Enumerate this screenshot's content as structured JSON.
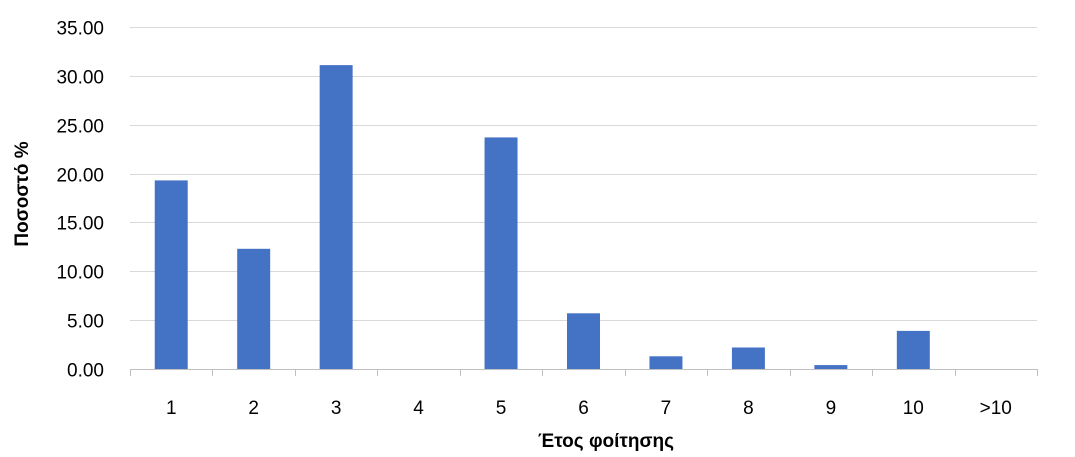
{
  "chart_data": {
    "type": "bar",
    "title": "",
    "xlabel": "Έτος φοίτησης",
    "ylabel": "Ποσοστό %",
    "categories": [
      "1",
      "2",
      "3",
      "4",
      "5",
      "6",
      "7",
      "8",
      "9",
      "10",
      ">10"
    ],
    "values": [
      19.3,
      12.3,
      31.1,
      0.0,
      23.7,
      5.7,
      1.3,
      2.2,
      0.4,
      3.9,
      0.0
    ],
    "ylim": [
      0,
      35
    ],
    "yticks": [
      0,
      5,
      10,
      15,
      20,
      25,
      30,
      35
    ],
    "ytick_labels": [
      "0.00",
      "5.00",
      "10.00",
      "15.00",
      "20.00",
      "25.00",
      "30.00",
      "35.00"
    ],
    "grid": true,
    "legend": "none",
    "bar_color": "#4472c4",
    "grid_color": "#d9d9d9"
  }
}
